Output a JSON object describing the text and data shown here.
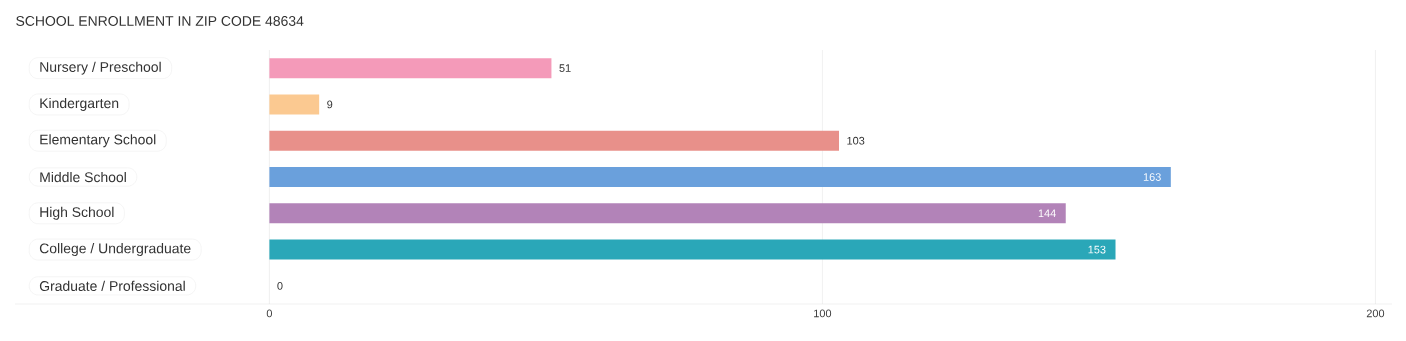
{
  "chart_data": {
    "type": "bar",
    "orientation": "horizontal",
    "title": "SCHOOL ENROLLMENT IN ZIP CODE 48634",
    "categories": [
      "Nursery / Preschool",
      "Kindergarten",
      "Elementary School",
      "Middle School",
      "High School",
      "College / Undergraduate",
      "Graduate / Professional"
    ],
    "values": [
      51,
      9,
      103,
      163,
      144,
      153,
      0
    ],
    "colors": [
      "#f49ab9",
      "#fbc991",
      "#e8908a",
      "#6aa0dc",
      "#b283b8",
      "#2aa7b8",
      "#aab4e6"
    ],
    "xlim": [
      -46,
      203
    ],
    "xticks": [
      0,
      100,
      200
    ],
    "grid": "x",
    "data_labels": true
  }
}
